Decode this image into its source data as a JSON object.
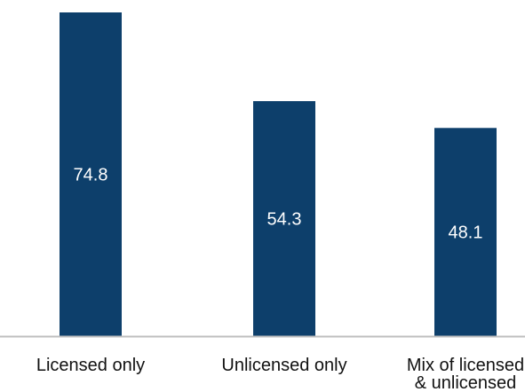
{
  "chart_data": {
    "type": "bar",
    "categories": [
      [
        "Licensed only"
      ],
      [
        "Unlicensed only"
      ],
      [
        "Mix of licensed",
        "& unlicensed"
      ]
    ],
    "values": [
      74.8,
      54.3,
      48.1
    ],
    "value_labels": [
      "74.8",
      "54.3",
      "48.1"
    ],
    "title": "",
    "xlabel": "",
    "ylabel": "",
    "ylim": [
      0,
      74.8
    ],
    "grid": false,
    "bar_color": "#0d3f6b",
    "axis_color": "#bfbfbf"
  }
}
